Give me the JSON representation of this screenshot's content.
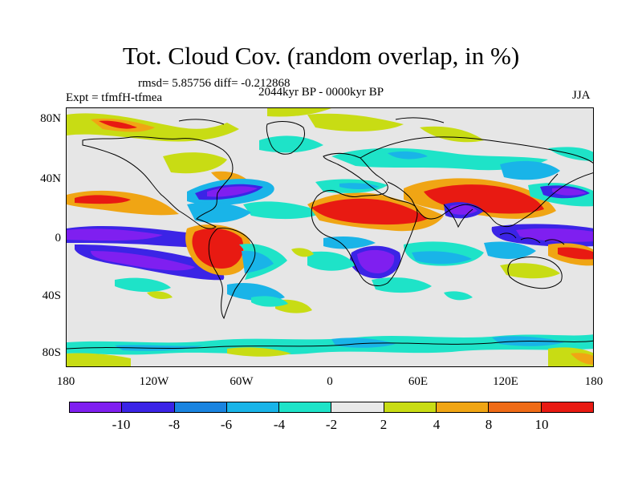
{
  "title": "Tot. Cloud Cov. (random overlap, in %)",
  "stats": "rmsd= 5.85756 diff= -0.212868",
  "period": "2044kyr BP - 0000kyr BP",
  "expt": "Expt = tfmfH-tfmea",
  "season": "JJA",
  "lat_labels": [
    "80N",
    "40N",
    "0",
    "40S",
    "80S"
  ],
  "lon_labels": [
    "180",
    "120W",
    "60W",
    "0",
    "60E",
    "120E",
    "180"
  ],
  "colorbar": {
    "colors": [
      "#7f1ff0",
      "#3b24e6",
      "#1a84e0",
      "#19b4e8",
      "#1ee3c8",
      "#e8e8e8",
      "#c8dc14",
      "#f0a514",
      "#ef6b16",
      "#e81a12"
    ],
    "labels": [
      "-10",
      "-8",
      "-6",
      "-4",
      "-2",
      "2",
      "4",
      "8",
      "10"
    ]
  }
}
